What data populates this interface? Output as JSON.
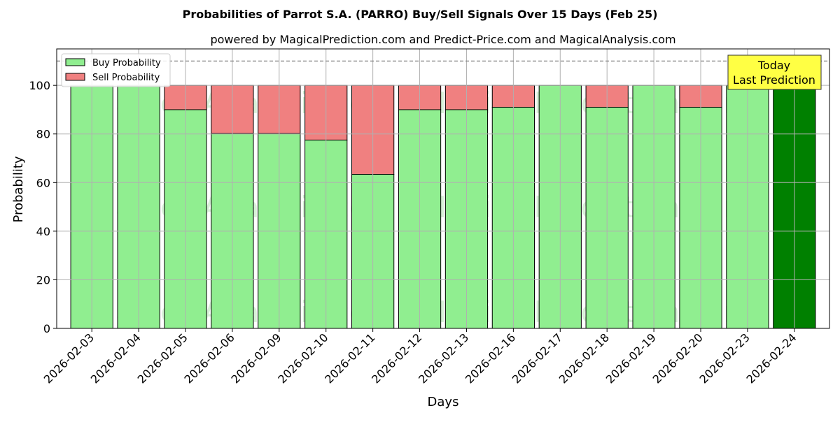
{
  "chart_data": {
    "type": "bar",
    "stacked": true,
    "title": "Probabilities of Parrot S.A. (PARRO) Buy/Sell Signals Over 15 Days (Feb 25)",
    "subtitle": "powered by MagicalPrediction.com and Predict-Price.com and MagicalAnalysis.com",
    "xlabel": "Days",
    "ylabel": "Probability",
    "ylim": [
      0,
      115
    ],
    "yticks": [
      0,
      20,
      40,
      60,
      80,
      100
    ],
    "grid": true,
    "legend_position": "top-left",
    "categories": [
      "2026-02-03",
      "2026-02-04",
      "2026-02-05",
      "2026-02-06",
      "2026-02-09",
      "2026-02-10",
      "2026-02-11",
      "2026-02-12",
      "2026-02-13",
      "2026-02-16",
      "2026-02-17",
      "2026-02-18",
      "2026-02-19",
      "2026-02-20",
      "2026-02-23",
      "2026-02-24"
    ],
    "series": [
      {
        "name": "Buy Probability",
        "color": "#90ee90",
        "values": [
          100,
          100,
          90,
          80.2,
          80.2,
          77.5,
          63.4,
          90,
          90,
          91,
          100,
          91,
          100,
          91,
          100,
          100
        ]
      },
      {
        "name": "Sell Probability",
        "color": "#f08080",
        "values": [
          0,
          0,
          10,
          19.8,
          19.8,
          22.5,
          36.6,
          10,
          10,
          9,
          0,
          9,
          0,
          9,
          0,
          0
        ]
      }
    ],
    "highlight": {
      "index": 15,
      "color": "#008000"
    },
    "reference_line": {
      "y": 110,
      "style": "dashed",
      "color": "#808080"
    },
    "annotation": {
      "lines": [
        "Today",
        "Last Prediction"
      ],
      "background": "#ffff44"
    },
    "watermarks": [
      "MagicalAnalysis.com",
      "MagicalPrediction.com"
    ]
  }
}
